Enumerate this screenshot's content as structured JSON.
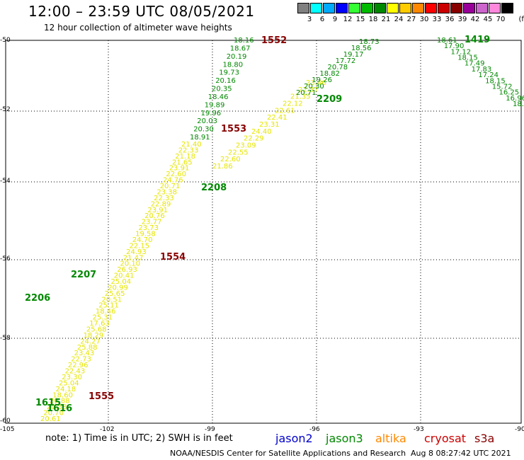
{
  "header": {
    "title": "12:00 – 23:59 UTC 08/05/2021",
    "subtitle": "12 hour collection of altimeter wave heights"
  },
  "color_scale": {
    "unit": "(ft)",
    "bins": [
      {
        "label": "3",
        "color": "#808080"
      },
      {
        "label": "6",
        "color": "#00ffff"
      },
      {
        "label": "9",
        "color": "#00aaff"
      },
      {
        "label": "12",
        "color": "#0000ff"
      },
      {
        "label": "15",
        "color": "#33ff33"
      },
      {
        "label": "18",
        "color": "#00bb00"
      },
      {
        "label": "21",
        "color": "#008800"
      },
      {
        "label": "24",
        "color": "#ffff00"
      },
      {
        "label": "27",
        "color": "#ffcc00"
      },
      {
        "label": "30",
        "color": "#ff8800"
      },
      {
        "label": "33",
        "color": "#ff0000"
      },
      {
        "label": "36",
        "color": "#cc0000"
      },
      {
        "label": "39",
        "color": "#880000"
      },
      {
        "label": "42",
        "color": "#990099"
      },
      {
        "label": "45",
        "color": "#cc66cc"
      },
      {
        "label": "70",
        "color": "#ff88dd"
      },
      {
        "label": "",
        "color": "#000000"
      }
    ]
  },
  "axes": {
    "lat_labels": [
      "-50",
      "-52",
      "-54",
      "-56",
      "-58",
      "-60"
    ],
    "lon_labels": [
      "-105",
      "-102",
      "-99",
      "-96",
      "-93",
      "-90"
    ]
  },
  "footer": {
    "note": "note:  1) Time is in UTC; 2) SWH is in feet",
    "credit": "NOAA/NESDIS Center for Satellite Applications and Research",
    "timestamp": "Aug  8 08:27:42 UTC 2021",
    "legend": [
      {
        "name": "jason2",
        "color": "#0000cc"
      },
      {
        "name": "jason3",
        "color": "#008800"
      },
      {
        "name": "altika",
        "color": "#ff8800"
      },
      {
        "name": "cryosat",
        "color": "#cc0000"
      },
      {
        "name": "s3a",
        "color": "#880000"
      }
    ]
  },
  "tracks": {
    "jason3_a": {
      "color": "#008800",
      "values": [
        "18.16",
        "18.67",
        "20.19",
        "18.80",
        "19.73",
        "20.16",
        "20.35",
        "18.46",
        "19.89",
        "19.96",
        "20.03",
        "20.30",
        "18.91"
      ]
    },
    "yellow_a": {
      "color": "#e6e600",
      "values": [
        "21.40",
        "22.33",
        "21.18",
        "21.65",
        "23.91",
        "22.60",
        "24.76",
        "20.71",
        "23.38",
        "22.33",
        "22.89",
        "23.91",
        "20.76",
        "23.77",
        "23.73",
        "19.58",
        "24.70",
        "22.15",
        "24.93",
        "21.47",
        "20.10",
        "26.93",
        "20.41",
        "25.04",
        "20.99",
        "25.65",
        "20.51",
        "25.11",
        "18.46",
        "25.31",
        "17.63",
        "25.68",
        "18.29",
        "24.27",
        "25.88",
        "23.43",
        "22.73",
        "22.96",
        "22.43",
        "23.30",
        "25.04",
        "24.18",
        "18.60",
        "20.88",
        "20.58",
        "20.70",
        "20.61"
      ]
    },
    "yellow_b": {
      "color": "#e6e600",
      "values": [
        "23.46",
        "22.37",
        "21.35",
        "22.12",
        "22.61",
        "22.41",
        "23.31",
        "24.40",
        "22.29",
        "23.09",
        "22.55",
        "22.60",
        "21.86"
      ]
    },
    "jason3_b": {
      "color": "#008800",
      "values": [
        "18.73",
        "18.56",
        "19.17",
        "17.72",
        "20.78",
        "18.82",
        "19.26",
        "20.30",
        "20.71"
      ]
    },
    "jason3_c": {
      "color": "#008800",
      "values": [
        "18.61",
        "17.90",
        "17.12",
        "18.15",
        "17.49",
        "17.83",
        "17.24",
        "18.15",
        "15.72",
        "16.25",
        "16.96",
        "18."
      ]
    }
  },
  "pass_labels": [
    {
      "text": "1552",
      "color": "#880000"
    },
    {
      "text": "1553",
      "color": "#880000"
    },
    {
      "text": "1554",
      "color": "#880000"
    },
    {
      "text": "1555",
      "color": "#880000"
    },
    {
      "text": "2209",
      "color": "#008800"
    },
    {
      "text": "2208",
      "color": "#008800"
    },
    {
      "text": "2207",
      "color": "#008800"
    },
    {
      "text": "2206",
      "color": "#008800"
    },
    {
      "text": "1615",
      "color": "#008800"
    },
    {
      "text": "1616",
      "color": "#008800"
    },
    {
      "text": "1419",
      "color": "#008800"
    }
  ]
}
